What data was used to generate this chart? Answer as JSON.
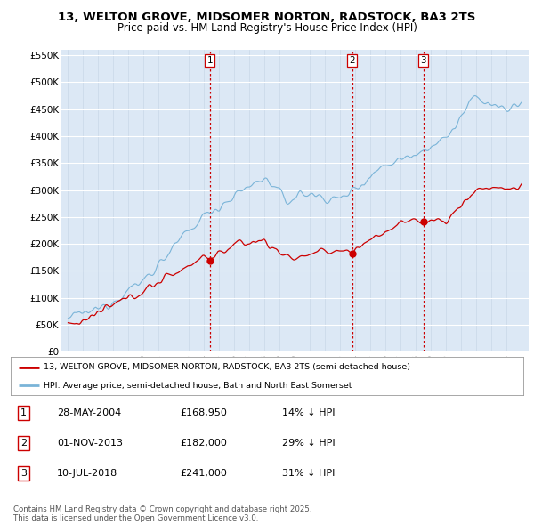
{
  "title1": "13, WELTON GROVE, MIDSOMER NORTON, RADSTOCK, BA3 2TS",
  "title2": "Price paid vs. HM Land Registry's House Price Index (HPI)",
  "ylabel_ticks": [
    "£0",
    "£50K",
    "£100K",
    "£150K",
    "£200K",
    "£250K",
    "£300K",
    "£350K",
    "£400K",
    "£450K",
    "£500K",
    "£550K"
  ],
  "ytick_values": [
    0,
    50000,
    100000,
    150000,
    200000,
    250000,
    300000,
    350000,
    400000,
    450000,
    500000,
    550000
  ],
  "xlim_start": 1994.6,
  "xlim_end": 2025.5,
  "ylim_min": 0,
  "ylim_max": 560000,
  "sale1_year": 2004.41,
  "sale1_price": 168950,
  "sale1_label": "1",
  "sale2_year": 2013.83,
  "sale2_price": 182000,
  "sale2_label": "2",
  "sale3_year": 2018.53,
  "sale3_price": 241000,
  "sale3_label": "3",
  "line1_color": "#cc0000",
  "line2_color": "#7ab4d8",
  "vline_color": "#cc0000",
  "marker_color": "#cc0000",
  "table_rows": [
    [
      "1",
      "28-MAY-2004",
      "£168,950",
      "14% ↓ HPI"
    ],
    [
      "2",
      "01-NOV-2013",
      "£182,000",
      "29% ↓ HPI"
    ],
    [
      "3",
      "10-JUL-2018",
      "£241,000",
      "31% ↓ HPI"
    ]
  ],
  "legend_line1": "13, WELTON GROVE, MIDSOMER NORTON, RADSTOCK, BA3 2TS (semi-detached house)",
  "legend_line2": "HPI: Average price, semi-detached house, Bath and North East Somerset",
  "footnote": "Contains HM Land Registry data © Crown copyright and database right 2025.\nThis data is licensed under the Open Government Licence v3.0.",
  "background_color": "#ffffff",
  "plot_bg_color": "#dce8f5"
}
